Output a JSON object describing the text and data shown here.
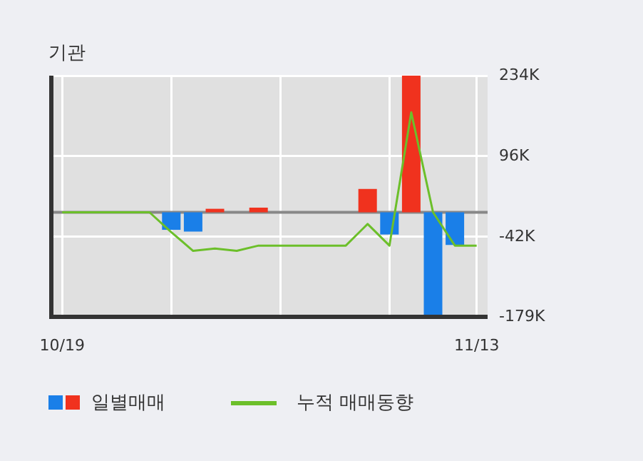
{
  "chart_data": {
    "type": "bar",
    "title": "기관",
    "categories": [
      "10/19",
      null,
      null,
      null,
      null,
      null,
      null,
      null,
      null,
      null,
      null,
      null,
      null,
      null,
      null,
      null,
      null,
      null,
      null,
      "11/13"
    ],
    "series": [
      {
        "name": "일별매매",
        "colors": [
          null,
          null,
          null,
          null,
          null,
          "#1a7fe8",
          "#1a7fe8",
          "#f0321e",
          null,
          "#f0321e",
          null,
          null,
          null,
          null,
          "#f0321e",
          "#1a7fe8",
          "#f0321e",
          "#1a7fe8",
          "#1a7fe8",
          null
        ],
        "values": [
          null,
          null,
          null,
          null,
          null,
          -30000,
          -33000,
          6000,
          null,
          8000,
          null,
          null,
          null,
          null,
          40000,
          -38000,
          234000,
          -179000,
          -56000,
          null
        ]
      },
      {
        "name": "누적 매매동향",
        "type": "line",
        "color": "#6cbf2a",
        "values": [
          0,
          0,
          0,
          0,
          0,
          -34000,
          -66000,
          -62000,
          -66000,
          -57000,
          -57000,
          -57000,
          -57000,
          -57000,
          -20000,
          -57000,
          171000,
          0,
          -57000,
          -57000
        ]
      }
    ],
    "ylim": [
      -179000,
      234000
    ],
    "yticks": [
      {
        "value": 234000,
        "label": "234K"
      },
      {
        "value": 96000,
        "label": "96K"
      },
      {
        "value": -42000,
        "label": "-42K"
      },
      {
        "value": -179000,
        "label": "-179K"
      }
    ],
    "ref_lines": [
      {
        "axis": "y",
        "value": 0,
        "color": "#888888"
      }
    ],
    "grid": true,
    "legend": "bottom",
    "marker": "none",
    "line_style": "solid"
  }
}
